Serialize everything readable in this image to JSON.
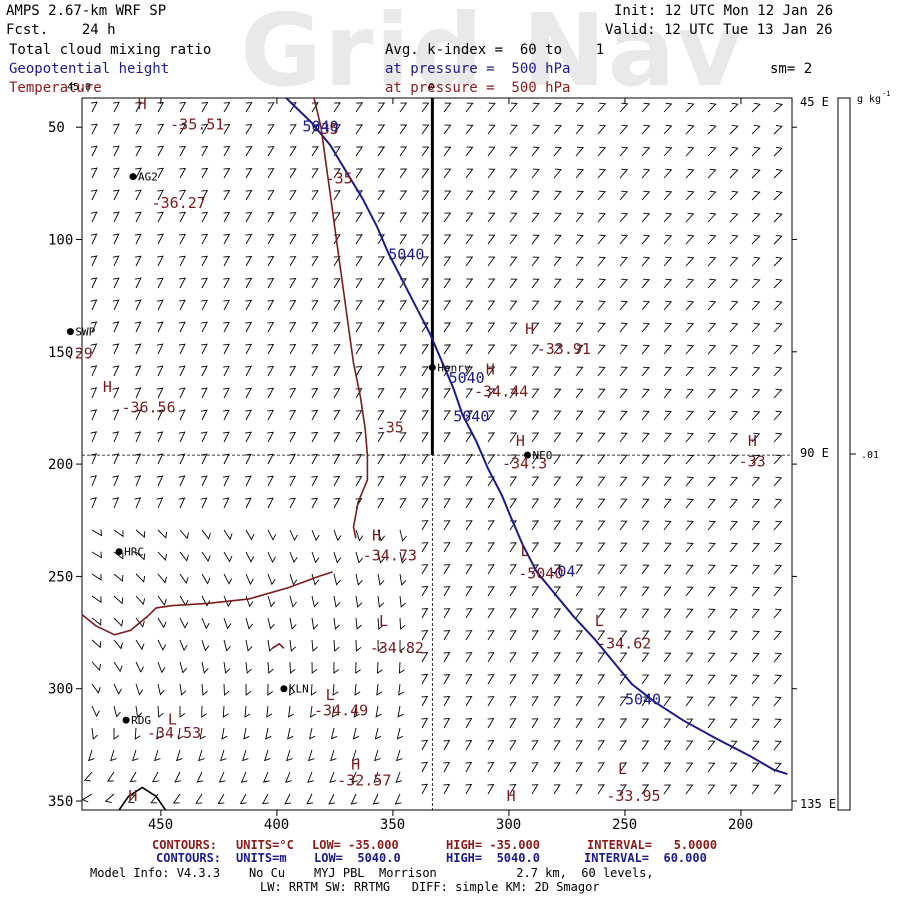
{
  "watermark": "Grid Nav",
  "header": {
    "model": "AMPS 2.67-km WRF SP",
    "fcst": "Fcst.    24 h",
    "init": "Init: 12 UTC Mon 12 Jan 26",
    "valid": "Valid: 12 UTC Tue 13 Jan 26",
    "field1": "Total cloud mixing ratio",
    "field2": "Geopotential height",
    "field3": "Temperature",
    "avg": "Avg. k-index =  60 to    1",
    "pressure_blue": "at pressure =  500 hPa",
    "pressure_red": "at pressure =  500 hPa",
    "sm": "sm= 2"
  },
  "axes": {
    "x_ticks": [
      {
        "label": "450",
        "value": 450
      },
      {
        "label": "400",
        "value": 400
      },
      {
        "label": "350",
        "value": 350
      },
      {
        "label": "300",
        "value": 300
      },
      {
        "label": "250",
        "value": 250
      },
      {
        "label": "200",
        "value": 200
      }
    ],
    "y_ticks": [
      {
        "label": "50",
        "value": 50
      },
      {
        "label": "100",
        "value": 100
      },
      {
        "label": "150",
        "value": 150
      },
      {
        "label": "200",
        "value": 200
      },
      {
        "label": "250",
        "value": 250
      },
      {
        "label": "300",
        "value": 300
      },
      {
        "label": "350",
        "value": 350
      }
    ],
    "right_labels": [
      "45 E",
      "90 E",
      "135 E"
    ],
    "top_markers": [
      "45.0",
      "0"
    ],
    "colorbar_unit": "g kg",
    "colorbar_unit_sup": "-1",
    "colorbar_value": ".01"
  },
  "stations": [
    {
      "name": "AG2",
      "x": 462,
      "y": 72
    },
    {
      "name": "SWP",
      "x": 489,
      "y": 141
    },
    {
      "name": "Henry",
      "x": 333,
      "y": 157
    },
    {
      "name": "NEO",
      "x": 292,
      "y": 196
    },
    {
      "name": "HRC",
      "x": 468,
      "y": 239
    },
    {
      "name": "KLN",
      "x": 397,
      "y": 300
    },
    {
      "name": "RDG",
      "x": 465,
      "y": 314
    }
  ],
  "temp_labels": [
    {
      "text": "H",
      "x": 460,
      "y": 42
    },
    {
      "text": "-35.51",
      "x": 446,
      "y": 51
    },
    {
      "text": "-35",
      "x": 385,
      "y": 53
    },
    {
      "text": "-35",
      "x": 379,
      "y": 75
    },
    {
      "text": "-36.27",
      "x": 454,
      "y": 86
    },
    {
      "text": ".29",
      "x": 491,
      "y": 153
    },
    {
      "text": "H",
      "x": 475,
      "y": 168
    },
    {
      "text": "-36.56",
      "x": 467,
      "y": 177
    },
    {
      "text": "H",
      "x": 293,
      "y": 142
    },
    {
      "text": "-33.91",
      "x": 288,
      "y": 151
    },
    {
      "text": "H",
      "x": 310,
      "y": 160
    },
    {
      "text": "-34.44",
      "x": 315,
      "y": 170
    },
    {
      "text": "-35",
      "x": 357,
      "y": 186
    },
    {
      "text": "H",
      "x": 297,
      "y": 192
    },
    {
      "text": "-34.3",
      "x": 303,
      "y": 202
    },
    {
      "text": "H",
      "x": 197,
      "y": 192
    },
    {
      "text": "-33",
      "x": 201,
      "y": 201
    },
    {
      "text": "H",
      "x": 359,
      "y": 234
    },
    {
      "text": "-34.73",
      "x": 363,
      "y": 243
    },
    {
      "text": "-34.82",
      "x": 360,
      "y": 284
    },
    {
      "text": "L",
      "x": 356,
      "y": 272
    },
    {
      "text": "L",
      "x": 263,
      "y": 272
    },
    {
      "text": "-34.62",
      "x": 262,
      "y": 282
    },
    {
      "text": "L",
      "x": 379,
      "y": 305
    },
    {
      "text": "-34.49",
      "x": 384,
      "y": 312
    },
    {
      "text": "L",
      "x": 447,
      "y": 316
    },
    {
      "text": "-34.53",
      "x": 456,
      "y": 322
    },
    {
      "text": "H",
      "x": 368,
      "y": 336
    },
    {
      "text": "-32.57",
      "x": 374,
      "y": 343
    },
    {
      "text": "L",
      "x": 253,
      "y": 338
    },
    {
      "text": "-33.95",
      "x": 258,
      "y": 350
    },
    {
      "text": "H",
      "x": 301,
      "y": 350
    },
    {
      "text": "H",
      "x": 464,
      "y": 350
    },
    {
      "text": "L",
      "x": 295,
      "y": 241
    },
    {
      "text": "-5040",
      "x": 296,
      "y": 251
    }
  ],
  "height_labels": [
    {
      "text": "5040",
      "x": 389,
      "y": 52
    },
    {
      "text": "5040",
      "x": 352,
      "y": 109
    },
    {
      "text": "5040",
      "x": 326,
      "y": 164
    },
    {
      "text": "5040",
      "x": 324,
      "y": 181
    },
    {
      "text": "-04",
      "x": 283,
      "y": 250
    },
    {
      "text": "5040",
      "x": 250,
      "y": 307
    }
  ],
  "footer": {
    "contour_red": {
      "contours": "CONTOURS:",
      "units": "UNITS=°C",
      "low": "LOW= -35.000",
      "high": "HIGH= -35.000",
      "interval": "INTERVAL=   5.0000"
    },
    "contour_blue": {
      "contours": "CONTOURS:",
      "units": "UNITS=m",
      "low": "LOW=  5040.0",
      "high": "HIGH=  5040.0",
      "interval": "INTERVAL=  60.000"
    },
    "model_info": "Model Info: V4.3.3    No Cu    MYJ PBL  Morrison           2.7 km,  60 levels,",
    "model_info2": "LW: RRTM SW: RRTMG   DIFF: simple KM: 2D Smagor"
  },
  "colors": {
    "height": "#1a1a8c",
    "temperature": "#7a1c1c",
    "frame": "#000000"
  },
  "map_data": {
    "x_range": [
      484,
      178
    ],
    "y_range": [
      37,
      354
    ],
    "height_contour": [
      [
        396,
        37
      ],
      [
        385,
        48
      ],
      [
        377,
        58
      ],
      [
        370,
        70
      ],
      [
        363,
        82
      ],
      [
        357,
        94
      ],
      [
        352,
        106
      ],
      [
        346,
        118
      ],
      [
        340,
        130
      ],
      [
        334,
        142
      ],
      [
        329,
        154
      ],
      [
        324,
        166
      ],
      [
        320,
        178
      ],
      [
        314,
        190
      ],
      [
        309,
        202
      ],
      [
        303,
        214
      ],
      [
        299,
        224
      ],
      [
        294,
        236
      ],
      [
        288,
        248
      ],
      [
        280,
        258
      ],
      [
        272,
        268
      ],
      [
        263,
        278
      ],
      [
        255,
        288
      ],
      [
        247,
        298
      ],
      [
        237,
        306
      ],
      [
        225,
        314
      ],
      [
        211,
        322
      ],
      [
        196,
        330
      ],
      [
        186,
        336
      ],
      [
        180,
        338
      ]
    ],
    "temp_contour_main": [
      [
        384,
        37
      ],
      [
        381,
        50
      ],
      [
        379,
        65
      ],
      [
        377,
        80
      ],
      [
        375,
        95
      ],
      [
        373,
        110
      ],
      [
        371,
        125
      ],
      [
        369,
        140
      ],
      [
        367,
        155
      ],
      [
        364,
        170
      ],
      [
        362,
        184
      ],
      [
        361,
        196
      ],
      [
        361,
        207
      ],
      [
        365,
        217
      ],
      [
        367,
        228
      ],
      [
        366,
        233
      ]
    ],
    "temp_contour_lower": [
      [
        484,
        267
      ],
      [
        478,
        272
      ],
      [
        470,
        276
      ],
      [
        463,
        274
      ],
      [
        456,
        268
      ],
      [
        452,
        264
      ],
      [
        445,
        263
      ],
      [
        430,
        262
      ],
      [
        412,
        260
      ],
      [
        395,
        255
      ],
      [
        382,
        250
      ],
      [
        376,
        248
      ]
    ],
    "temp_contour_small": [
      [
        402,
        282
      ],
      [
        399,
        280
      ],
      [
        397,
        282
      ]
    ],
    "front_line_x": 333,
    "front_line_y": [
      37,
      196
    ],
    "cross_lon": 333,
    "cross_lat": 196,
    "domain_edge": [
      [
        468,
        354
      ],
      [
        464,
        348
      ],
      [
        458,
        344
      ],
      [
        452,
        348
      ],
      [
        448,
        354
      ]
    ]
  }
}
